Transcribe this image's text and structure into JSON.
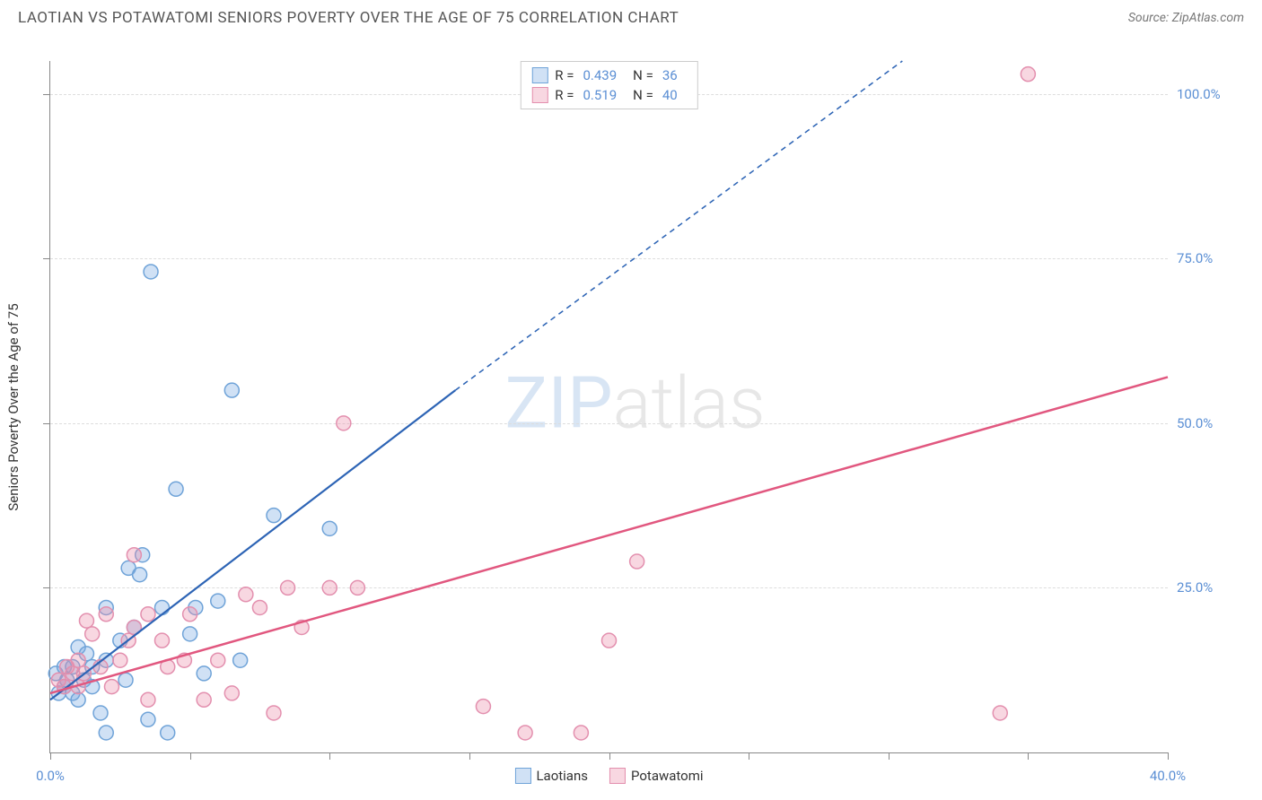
{
  "header": {
    "title": "LAOTIAN VS POTAWATOMI SENIORS POVERTY OVER THE AGE OF 75 CORRELATION CHART",
    "source": "Source: ZipAtlas.com"
  },
  "chart": {
    "type": "scatter",
    "y_axis_label": "Seniors Poverty Over the Age of 75",
    "xlim": [
      0,
      40
    ],
    "ylim": [
      0,
      105
    ],
    "x_ticks": [
      0,
      5,
      10,
      15,
      20,
      25,
      30,
      35,
      40
    ],
    "x_tick_labels": {
      "0": "0.0%",
      "40": "40.0%"
    },
    "y_ticks": [
      25,
      50,
      75,
      100
    ],
    "y_tick_labels": {
      "25": "25.0%",
      "50": "50.0%",
      "75": "75.0%",
      "100": "100.0%"
    },
    "grid_color": "#dddddd",
    "axis_color": "#888888",
    "background_color": "#ffffff",
    "tick_label_color": "#5b8fd4",
    "marker_radius": 8,
    "marker_stroke_width": 1.5,
    "series": [
      {
        "name": "Laotians",
        "fill_color": "rgba(120,170,225,0.35)",
        "stroke_color": "#6fa3d8",
        "r_value": "0.439",
        "n_value": "36",
        "trend": {
          "x1": 0,
          "y1": 8,
          "x2": 14.5,
          "y2": 55,
          "dash_to_x": 30.5,
          "dash_to_y": 105,
          "color": "#2d64b5",
          "width": 2.2
        },
        "points": [
          [
            0.2,
            12
          ],
          [
            0.3,
            9
          ],
          [
            0.5,
            13
          ],
          [
            0.5,
            10
          ],
          [
            0.6,
            11
          ],
          [
            0.8,
            13
          ],
          [
            0.8,
            9
          ],
          [
            1.0,
            16
          ],
          [
            1.0,
            8
          ],
          [
            1.2,
            11
          ],
          [
            1.3,
            15
          ],
          [
            1.5,
            13
          ],
          [
            1.8,
            6
          ],
          [
            2.0,
            22
          ],
          [
            2.0,
            3
          ],
          [
            2.5,
            17
          ],
          [
            2.7,
            11
          ],
          [
            2.8,
            28
          ],
          [
            3.0,
            19
          ],
          [
            3.2,
            27
          ],
          [
            3.3,
            30
          ],
          [
            3.5,
            5
          ],
          [
            3.6,
            73
          ],
          [
            4.0,
            22
          ],
          [
            4.2,
            3
          ],
          [
            4.5,
            40
          ],
          [
            5.0,
            18
          ],
          [
            5.2,
            22
          ],
          [
            5.5,
            12
          ],
          [
            6.0,
            23
          ],
          [
            6.5,
            55
          ],
          [
            6.8,
            14
          ],
          [
            8.0,
            36
          ],
          [
            10.0,
            34
          ],
          [
            2.0,
            14
          ],
          [
            1.5,
            10
          ]
        ]
      },
      {
        "name": "Potawatomi",
        "fill_color": "rgba(235,140,170,0.35)",
        "stroke_color": "#e38fae",
        "r_value": "0.519",
        "n_value": "40",
        "trend": {
          "x1": 0,
          "y1": 9,
          "x2": 40,
          "y2": 57,
          "color": "#e1577f",
          "width": 2.5
        },
        "points": [
          [
            0.3,
            11
          ],
          [
            0.5,
            10
          ],
          [
            0.6,
            13
          ],
          [
            0.8,
            12
          ],
          [
            1.0,
            14
          ],
          [
            1.0,
            10
          ],
          [
            1.3,
            20
          ],
          [
            1.5,
            18
          ],
          [
            1.8,
            13
          ],
          [
            2.0,
            21
          ],
          [
            2.2,
            10
          ],
          [
            2.5,
            14
          ],
          [
            2.8,
            17
          ],
          [
            3.0,
            19
          ],
          [
            3.0,
            30
          ],
          [
            3.5,
            21
          ],
          [
            3.5,
            8
          ],
          [
            4.0,
            17
          ],
          [
            4.2,
            13
          ],
          [
            4.8,
            14
          ],
          [
            5.0,
            21
          ],
          [
            5.5,
            8
          ],
          [
            6.0,
            14
          ],
          [
            6.5,
            9
          ],
          [
            7.0,
            24
          ],
          [
            7.5,
            22
          ],
          [
            8.0,
            6
          ],
          [
            8.5,
            25
          ],
          [
            9.0,
            19
          ],
          [
            10.0,
            25
          ],
          [
            10.5,
            50
          ],
          [
            11.0,
            25
          ],
          [
            15.5,
            7
          ],
          [
            17.0,
            3
          ],
          [
            19.0,
            3
          ],
          [
            20.0,
            17
          ],
          [
            21.0,
            29
          ],
          [
            34.0,
            6
          ],
          [
            35.0,
            103
          ],
          [
            1.2,
            12
          ]
        ]
      }
    ],
    "legend_bottom": [
      {
        "label": "Laotians",
        "fill": "rgba(120,170,225,0.35)",
        "stroke": "#6fa3d8"
      },
      {
        "label": "Potawatomi",
        "fill": "rgba(235,140,170,0.35)",
        "stroke": "#e38fae"
      }
    ],
    "watermark": {
      "prefix": "ZIP",
      "suffix": "atlas"
    }
  }
}
